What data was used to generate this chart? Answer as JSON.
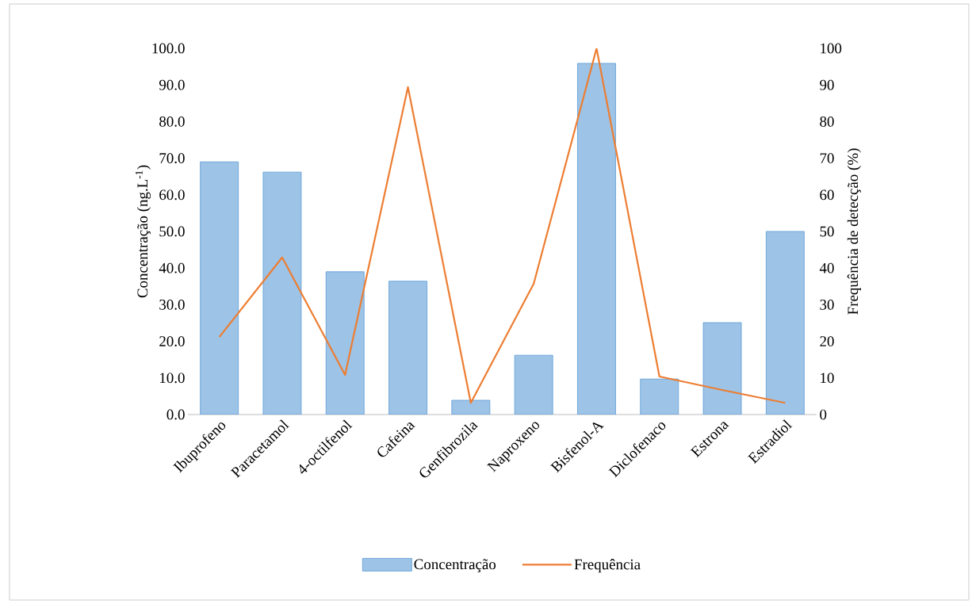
{
  "chart_data": {
    "type": "bar",
    "categories": [
      "Ibuprofeno",
      "Paracetamol",
      "4-octilfenol",
      "Cafeina",
      "Genfibrozila",
      "Naproxeno",
      "Bisfenol-A",
      "Diclofenaco",
      "Estrona",
      "Estradiol"
    ],
    "ylabel": "Concentração (ng.L$^{-1}$)",
    "y2label": "Frequência de detecção (%)",
    "ylim": [
      0,
      100
    ],
    "yticks": [
      {
        "value": 0,
        "label": "0.0"
      },
      {
        "value": 10,
        "label": "10.0"
      },
      {
        "value": 20,
        "label": "20.0"
      },
      {
        "value": 30,
        "label": "30.0"
      },
      {
        "value": 40,
        "label": "40.0"
      },
      {
        "value": 50,
        "label": "50.0"
      },
      {
        "value": 60,
        "label": "60.0"
      },
      {
        "value": 70,
        "label": "70.0"
      },
      {
        "value": 80,
        "label": "80.0"
      },
      {
        "value": 90,
        "label": "90.0"
      },
      {
        "value": 100,
        "label": "100.0"
      }
    ],
    "y2lim": [
      0,
      100
    ],
    "y2ticks": [
      0,
      10,
      20,
      30,
      40,
      50,
      60,
      70,
      80,
      90,
      100
    ],
    "legend": "bottom",
    "series": [
      {
        "name": "Concentração",
        "color": "#9dc3e6",
        "values": [
          69.0,
          66.2,
          39.0,
          36.4,
          3.9,
          16.2,
          95.9,
          9.7,
          25.1,
          50.0
        ]
      },
      {
        "name": "Frequência",
        "type": "line",
        "axis": "y2",
        "color": "#ed7d31",
        "values": [
          21.2,
          42.9,
          10.8,
          89.4,
          3.2,
          35.7,
          100,
          10.4,
          6.7,
          3.2
        ]
      }
    ]
  }
}
